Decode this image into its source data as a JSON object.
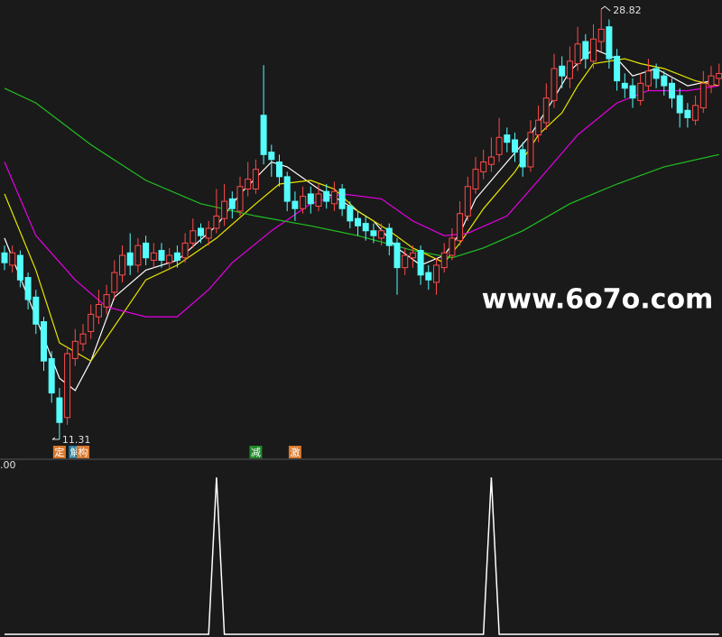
{
  "chart_data": [
    {
      "type": "candlestick",
      "background": "#1a1a1a",
      "up_color": "#ff4a4a",
      "down_color": "#54fcfc",
      "ylim": [
        10.65,
        29.19
      ],
      "open": [
        18.9,
        18.4,
        18.8,
        17.9,
        17.1,
        16.1,
        14.6,
        13.0,
        12.2,
        14.6,
        15.2,
        15.7,
        16.3,
        16.7,
        17.3,
        18.0,
        18.9,
        18.4,
        19.3,
        18.6,
        19.0,
        18.5,
        18.9,
        18.7,
        19.3,
        19.9,
        19.5,
        19.9,
        20.3,
        21.1,
        20.6,
        21.5,
        21.5,
        24.5,
        23.0,
        22.6,
        22.0,
        21.0,
        20.7,
        21.3,
        20.8,
        21.4,
        20.9,
        21.5,
        20.8,
        20.3,
        20.1,
        19.8,
        19.5,
        19.9,
        19.3,
        18.3,
        18.7,
        19.0,
        18.1,
        17.7,
        18.3,
        18.8,
        19.4,
        20.4,
        21.5,
        22.2,
        22.5,
        22.9,
        23.7,
        23.5,
        23.1,
        22.4,
        23.7,
        24.2,
        25.1,
        26.5,
        26.0,
        26.6,
        27.5,
        26.7,
        27.5,
        28.1,
        26.9,
        25.8,
        25.7,
        25.1,
        25.7,
        26.4,
        26.1,
        25.8,
        25.3,
        24.7,
        24.3,
        24.8,
        25.7,
        26.0
      ],
      "close": [
        18.5,
        18.9,
        17.8,
        17.0,
        16.0,
        14.5,
        13.2,
        12.0,
        14.8,
        15.3,
        15.6,
        16.4,
        16.8,
        17.2,
        18.1,
        18.8,
        18.4,
        19.2,
        18.7,
        18.9,
        18.6,
        18.8,
        18.6,
        19.3,
        19.8,
        19.6,
        19.9,
        20.4,
        21.0,
        20.7,
        21.6,
        21.9,
        22.3,
        22.9,
        22.7,
        22.0,
        21.0,
        20.7,
        21.2,
        20.9,
        21.3,
        21.0,
        21.4,
        20.7,
        20.2,
        20.0,
        19.8,
        19.6,
        19.8,
        19.2,
        18.3,
        18.8,
        18.9,
        18.0,
        17.8,
        18.4,
        18.9,
        19.5,
        20.5,
        21.6,
        22.3,
        22.6,
        22.8,
        23.6,
        23.4,
        23.0,
        22.4,
        23.8,
        24.3,
        25.2,
        26.4,
        26.1,
        26.7,
        27.4,
        26.8,
        27.6,
        28.0,
        26.8,
        25.9,
        25.6,
        25.2,
        25.8,
        26.3,
        26.0,
        25.7,
        25.2,
        24.6,
        24.4,
        24.9,
        25.8,
        26.1,
        26.2
      ],
      "high": [
        19.2,
        19.2,
        19.0,
        18.1,
        17.4,
        16.3,
        14.9,
        13.4,
        15.1,
        15.8,
        16.0,
        16.8,
        17.4,
        17.6,
        18.6,
        19.2,
        19.7,
        19.5,
        19.6,
        19.3,
        19.3,
        19.1,
        19.2,
        19.7,
        20.3,
        20.1,
        20.2,
        21.5,
        21.7,
        21.4,
        22.0,
        22.6,
        22.7,
        26.54,
        23.3,
        22.9,
        22.2,
        21.4,
        21.6,
        21.6,
        21.7,
        21.7,
        21.8,
        21.7,
        21.0,
        20.6,
        20.4,
        20.1,
        20.1,
        20.1,
        19.5,
        19.1,
        19.2,
        19.2,
        18.4,
        18.7,
        19.3,
        19.9,
        21.0,
        22.0,
        22.8,
        23.1,
        23.6,
        24.4,
        24.0,
        23.8,
        23.4,
        24.3,
        24.9,
        25.8,
        27.0,
        26.9,
        27.3,
        28.1,
        27.8,
        28.2,
        28.82,
        28.4,
        27.2,
        26.2,
        26.0,
        26.2,
        26.8,
        26.6,
        26.3,
        26.0,
        25.6,
        25.0,
        25.3,
        26.3,
        26.5,
        26.6
      ],
      "low": [
        18.2,
        18.1,
        17.5,
        16.6,
        15.6,
        14.1,
        12.8,
        11.31,
        11.9,
        14.3,
        14.9,
        15.4,
        16.0,
        16.4,
        17.0,
        17.7,
        18.0,
        18.1,
        18.4,
        18.3,
        18.3,
        18.2,
        18.3,
        18.5,
        19.1,
        19.3,
        19.2,
        19.7,
        20.0,
        20.3,
        20.4,
        21.2,
        21.3,
        22.5,
        22.0,
        21.6,
        20.6,
        20.2,
        20.5,
        20.5,
        20.6,
        20.7,
        20.6,
        20.4,
        19.9,
        19.6,
        19.4,
        19.3,
        19.2,
        18.8,
        17.2,
        18.0,
        18.3,
        17.6,
        17.4,
        17.2,
        18.1,
        18.6,
        19.2,
        20.2,
        21.3,
        21.9,
        22.2,
        22.6,
        23.0,
        22.6,
        22.0,
        22.2,
        23.4,
        23.9,
        24.8,
        25.6,
        25.6,
        26.3,
        26.4,
        26.4,
        27.1,
        26.4,
        25.5,
        25.2,
        24.8,
        24.9,
        25.5,
        25.6,
        25.3,
        24.8,
        24.0,
        24.0,
        24.1,
        24.6,
        25.4,
        25.7
      ],
      "lines": [
        {
          "color": "#ffffff",
          "x": [
            0,
            3,
            7,
            9,
            11,
            14,
            18,
            22,
            27,
            30,
            34,
            36,
            40,
            43,
            47,
            50,
            53,
            56,
            58,
            60,
            64,
            67,
            70,
            72,
            75,
            78,
            80,
            83,
            87,
            90
          ],
          "values": [
            19.5,
            17.1,
            13.8,
            13.3,
            14.5,
            17.1,
            18.2,
            18.6,
            20.0,
            21.3,
            22.6,
            22.4,
            21.5,
            21.0,
            20.2,
            19.1,
            18.4,
            18.8,
            19.7,
            21.1,
            22.6,
            23.7,
            25.2,
            26.3,
            27.2,
            26.8,
            26.1,
            26.4,
            25.7,
            25.9
          ]
        },
        {
          "color": "#e6e600",
          "x": [
            0,
            4,
            7,
            11,
            18,
            22,
            27,
            32,
            35,
            39,
            42,
            45,
            49,
            52,
            56,
            58,
            61,
            65,
            68,
            71,
            73,
            75,
            79,
            81,
            84,
            88,
            91
          ],
          "values": [
            21.3,
            18.2,
            15.24,
            14.5,
            17.8,
            18.4,
            19.5,
            20.9,
            21.7,
            21.85,
            21.5,
            20.6,
            19.8,
            19.1,
            18.5,
            19.3,
            20.7,
            22.2,
            23.7,
            24.6,
            25.7,
            26.6,
            26.8,
            26.6,
            26.4,
            25.9,
            25.7
          ]
        },
        {
          "color": "#e600e6",
          "x": [
            0,
            4,
            9,
            13,
            18,
            22,
            26,
            29,
            34,
            39,
            43,
            48,
            52,
            56,
            59,
            64,
            68,
            73,
            78,
            82,
            87,
            91
          ],
          "values": [
            22.6,
            19.6,
            17.8,
            16.7,
            16.3,
            16.3,
            17.4,
            18.5,
            19.8,
            20.9,
            21.3,
            21.1,
            20.2,
            19.6,
            19.7,
            20.4,
            21.85,
            23.7,
            25.0,
            25.5,
            25.5,
            25.7
          ]
        },
        {
          "color": "#20c020",
          "x": [
            0,
            4,
            11,
            18,
            25,
            32,
            39,
            45,
            52,
            57,
            61,
            66,
            72,
            78,
            84,
            91
          ],
          "values": [
            25.6,
            25.0,
            23.3,
            21.85,
            20.9,
            20.4,
            20.0,
            19.6,
            19.0,
            18.7,
            19.1,
            19.8,
            20.9,
            21.7,
            22.4,
            22.9
          ]
        }
      ],
      "signals": [
        null,
        null,
        null,
        null,
        null,
        null,
        null,
        {
          "text": "定",
          "color": "#d9782c"
        },
        null,
        {
          "text": "解",
          "color": "#2b7f9e"
        },
        {
          "text": "构",
          "color": "#d9782c"
        },
        null,
        null,
        null,
        null,
        null,
        null,
        null,
        null,
        null,
        null,
        null,
        null,
        null,
        null,
        null,
        null,
        null,
        null,
        null,
        null,
        null,
        {
          "text": "减",
          "color": "#1f8a2a"
        },
        null,
        null,
        null,
        null,
        {
          "text": "激",
          "color": "#d9782c"
        },
        null,
        null,
        null,
        null,
        null,
        null,
        null,
        null,
        null,
        null,
        null,
        null,
        null,
        null,
        null,
        null,
        null,
        null,
        null,
        null,
        null,
        null,
        null,
        null,
        null,
        null,
        null,
        null,
        null,
        null,
        null,
        null,
        null,
        null,
        null,
        null,
        null,
        null,
        null,
        null,
        null,
        null,
        null,
        null,
        null,
        null,
        null,
        null,
        null,
        null,
        null,
        null,
        null,
        null,
        null,
        null
      ],
      "watermark": "www.6o7o.com"
    },
    {
      "type": "line",
      "color": "#ffffff",
      "ylim": [
        0,
        1
      ],
      "yticks": [
        {
          "value": 1,
          "label": ".00"
        }
      ],
      "values": [
        0,
        0,
        0,
        0,
        0,
        0,
        0,
        0,
        0,
        0,
        0,
        0,
        0,
        0,
        0,
        0,
        0,
        0,
        0,
        0,
        0,
        0,
        0,
        0,
        0,
        0,
        0,
        0.93,
        0,
        0,
        0,
        0,
        0,
        0,
        0,
        0,
        0,
        0,
        0,
        0,
        0,
        0,
        0,
        0,
        0,
        0,
        0,
        0,
        0,
        0,
        0,
        0,
        0,
        0,
        0,
        0,
        0,
        0,
        0,
        0,
        0,
        0,
        0.93,
        0,
        0,
        0,
        0,
        0,
        0,
        0,
        0,
        0,
        0,
        0,
        0,
        0,
        0,
        0,
        0,
        0,
        0,
        0,
        0,
        0,
        0,
        0,
        0,
        0,
        0,
        0,
        0,
        0
      ]
    }
  ]
}
